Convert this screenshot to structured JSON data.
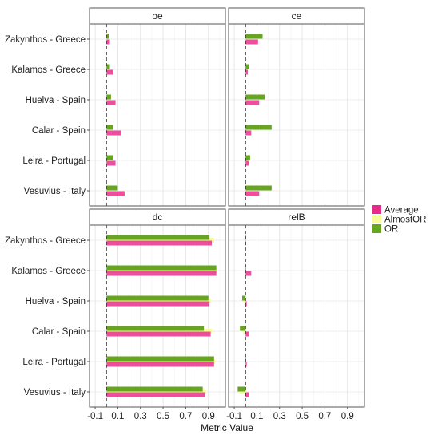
{
  "chart_data": {
    "type": "bar",
    "orientation": "horizontal",
    "xlabel": "Metric Value",
    "ylabel": "",
    "xlim": [
      -0.15,
      1.05
    ],
    "xticks": [
      -0.1,
      0.1,
      0.3,
      0.5,
      0.7,
      0.9
    ],
    "xtick_labels": [
      "-0.1",
      "0.1",
      "0.3",
      "0.5",
      "0.7",
      "0.9"
    ],
    "reference_line": 0.0,
    "grid": true,
    "legend_position": "right",
    "categories": [
      "Zakynthos - Greece",
      "Kalamos - Greece",
      "Huelva - Spain",
      "Calar - Spain",
      "Leira - Portugal",
      "Vesuvius - Italy"
    ],
    "series_names": [
      "Average",
      "AlmostOR",
      "OR"
    ],
    "series_colors": {
      "Average": "#e7298a",
      "AlmostOR": "#f7fc9a",
      "OR": "#66a61e"
    },
    "panels": [
      {
        "name": "oe",
        "values": {
          "OR": [
            0.02,
            0.03,
            0.04,
            0.06,
            0.06,
            0.1
          ],
          "AlmostOR": [
            0.01,
            0.01,
            0.01,
            0.01,
            0.01,
            0.01
          ],
          "Average": [
            0.03,
            0.06,
            0.08,
            0.13,
            0.08,
            0.16
          ]
        }
      },
      {
        "name": "ce",
        "values": {
          "OR": [
            0.15,
            0.03,
            0.17,
            0.23,
            0.04,
            0.23
          ],
          "AlmostOR": [
            0.01,
            0.01,
            0.01,
            0.01,
            0.01,
            0.01
          ],
          "Average": [
            0.11,
            0.02,
            0.12,
            0.05,
            0.03,
            0.12
          ]
        }
      },
      {
        "name": "dc",
        "values": {
          "OR": [
            0.91,
            0.97,
            0.9,
            0.86,
            0.95,
            0.85
          ],
          "AlmostOR": [
            0.95,
            0.98,
            0.92,
            0.93,
            0.96,
            0.88
          ],
          "Average": [
            0.93,
            0.97,
            0.91,
            0.92,
            0.95,
            0.87
          ]
        }
      },
      {
        "name": "relB",
        "values": {
          "OR": [
            0.0,
            0.0,
            -0.03,
            -0.05,
            0.0,
            -0.07
          ],
          "AlmostOR": [
            0.0,
            0.0,
            -0.02,
            -0.02,
            0.0,
            -0.05
          ],
          "Average": [
            0.0,
            0.05,
            0.01,
            0.03,
            0.01,
            0.03
          ]
        }
      }
    ]
  }
}
